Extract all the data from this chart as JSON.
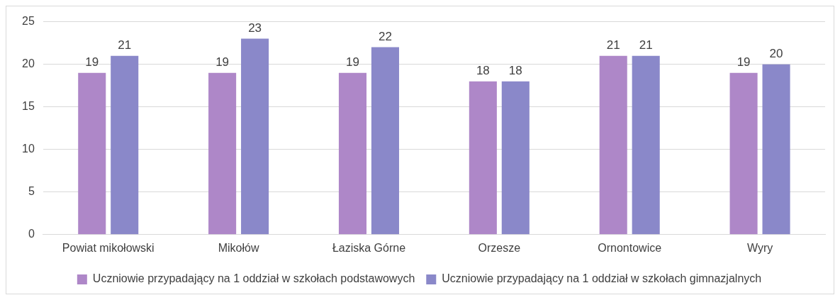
{
  "chart_data": {
    "type": "bar",
    "categories": [
      "Powiat mikołowski",
      "Mikołów",
      "Łaziska Górne",
      "Orzesze",
      "Ornontowice",
      "Wyry"
    ],
    "series": [
      {
        "name": "Uczniowie przypadający na 1 oddział w szkołach podstawowych",
        "color": "#ae87c8",
        "values": [
          19,
          19,
          19,
          18,
          21,
          19
        ]
      },
      {
        "name": "Uczniowie przypadający na 1 oddział w szkołach gimnazjalnych",
        "color": "#8a88c9",
        "values": [
          21,
          23,
          22,
          18,
          21,
          20
        ]
      }
    ],
    "ylim": [
      0,
      25
    ],
    "yticks": [
      0,
      5,
      10,
      15,
      20,
      25
    ],
    "grid": "y",
    "legend": "bottom",
    "data_labels": true
  }
}
